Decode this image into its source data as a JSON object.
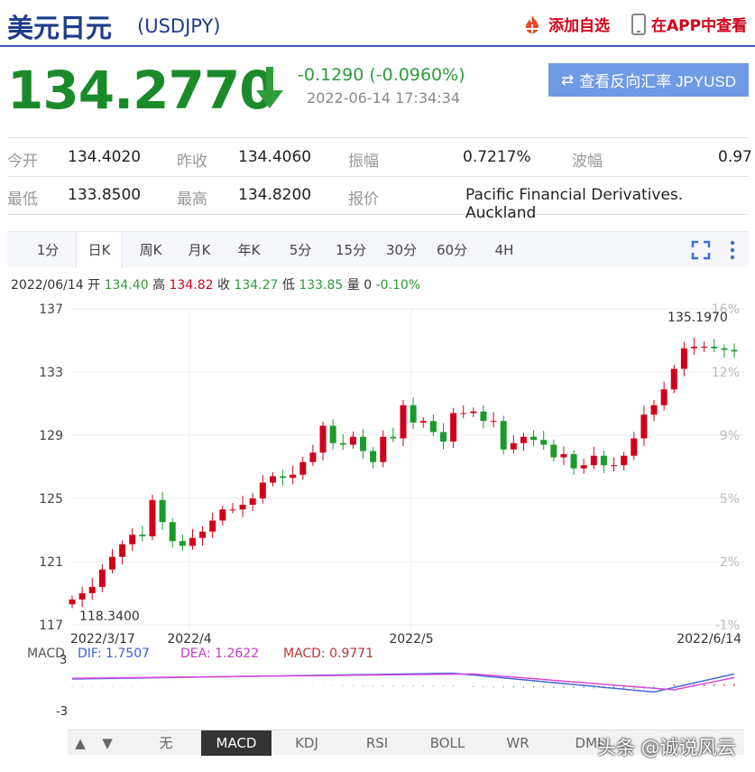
{
  "header": {
    "title": "美元日元",
    "symbol": "(USDJPY)",
    "add_favorite": "添加自选",
    "app_view": "在APP中查看"
  },
  "quote": {
    "price": "134.2770",
    "change": "-0.1290 (-0.0960%)",
    "time": "2022-06-14 17:34:34",
    "reverse_button": "查看反向汇率 JPYUSD",
    "colors": {
      "down": "#1b8a2b",
      "up": "#d0021b"
    }
  },
  "stats": {
    "open_label": "今开",
    "open": "134.4020",
    "prev_close_label": "昨收",
    "prev_close": "134.4060",
    "amplitude_label": "振幅",
    "amplitude": "0.7217%",
    "volatility_label": "波幅",
    "volatility": "0.97",
    "low_label": "最低",
    "low": "133.8500",
    "high_label": "最高",
    "high": "134.8200",
    "quote_label": "报价",
    "quote_source": "Pacific Financial Derivatives. Auckland"
  },
  "tabs": [
    "1分",
    "日K",
    "周K",
    "月K",
    "年K",
    "5分",
    "15分",
    "30分",
    "60分",
    "4H"
  ],
  "active_tab": "日K",
  "ohlc_line": {
    "date": "2022/06/14",
    "open_label": "开",
    "open": "134.40",
    "high_label": "高",
    "high": "134.82",
    "close_label": "收",
    "close": "134.27",
    "low_label": "低",
    "low": "133.85",
    "volume_label": "量",
    "volume": "0",
    "change": "-0.10%"
  },
  "chart_data": {
    "type": "candlestick",
    "y_ticks": [
      "137",
      "133",
      "129",
      "125",
      "121",
      "117"
    ],
    "y_right_ticks": [
      "16%",
      "12%",
      "9%",
      "5%",
      "2%",
      "-1%"
    ],
    "x_labels": [
      "2022/3/17",
      "2022/4",
      "2022/5",
      "2022/6/14"
    ],
    "ylim": [
      117,
      137
    ],
    "max_label": "135.1970",
    "min_label": "118.3400",
    "closes": [
      118.6,
      119.0,
      119.4,
      120.5,
      121.3,
      122.1,
      122.7,
      122.6,
      124.9,
      123.5,
      122.3,
      122.0,
      122.5,
      122.9,
      123.6,
      124.3,
      124.3,
      124.6,
      125.0,
      126.0,
      126.4,
      126.3,
      126.5,
      127.3,
      127.9,
      129.6,
      128.5,
      128.4,
      128.9,
      128.0,
      127.3,
      128.9,
      128.8,
      130.9,
      129.8,
      129.9,
      129.2,
      128.6,
      130.4,
      130.4,
      130.5,
      129.9,
      129.9,
      128.1,
      128.5,
      128.9,
      128.7,
      128.4,
      127.6,
      127.8,
      126.9,
      127.1,
      127.7,
      127.1,
      127.1,
      127.7,
      128.8,
      130.3,
      130.9,
      131.9,
      133.2,
      134.5,
      134.6,
      134.6,
      134.5,
      134.4,
      134.3
    ],
    "macd": {
      "dif_label": "DIF:",
      "dif": "1.7507",
      "dea_label": "DEA:",
      "dea": "1.2622",
      "macd_label": "MACD:",
      "macd": "0.9771",
      "title": "MACD",
      "y_ticks": [
        "3",
        "-3"
      ]
    }
  },
  "indicator_tabs": [
    "无",
    "MACD",
    "KDJ",
    "RSI",
    "BOLL",
    "WR",
    "DMI"
  ],
  "active_indicator": "MACD",
  "watermark": "头条 @诚说风云"
}
